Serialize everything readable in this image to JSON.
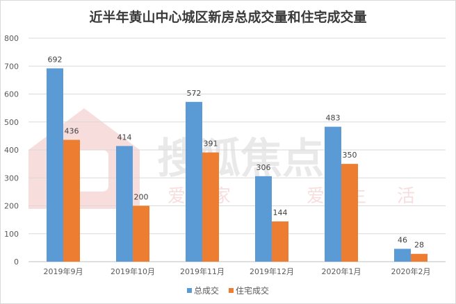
{
  "chart_data": {
    "type": "bar",
    "title": "近半年黄山中心城区新房总成交量和住宅成交量",
    "xlabel": "",
    "ylabel": "",
    "ylim": [
      0,
      800
    ],
    "yticks": [
      "0",
      "100",
      "200",
      "300",
      "400",
      "500",
      "600",
      "700",
      "800"
    ],
    "categories": [
      "2019年9月",
      "2019年10月",
      "2019年11月",
      "2019年12月",
      "2020年1月",
      "2020年2月"
    ],
    "series": [
      {
        "name": "总成交",
        "color": "#5b9bd5",
        "values": [
          692,
          414,
          572,
          306,
          483,
          46
        ]
      },
      {
        "name": "住宅成交",
        "color": "#ed7d31",
        "values": [
          436,
          200,
          391,
          144,
          350,
          28
        ]
      }
    ],
    "grid": true,
    "legend": "bottom-center",
    "data_labels": true
  },
  "watermark": {
    "brand": "搜狐焦点",
    "slogan": [
      "爱",
      "家",
      "爱",
      "生",
      "活"
    ]
  }
}
